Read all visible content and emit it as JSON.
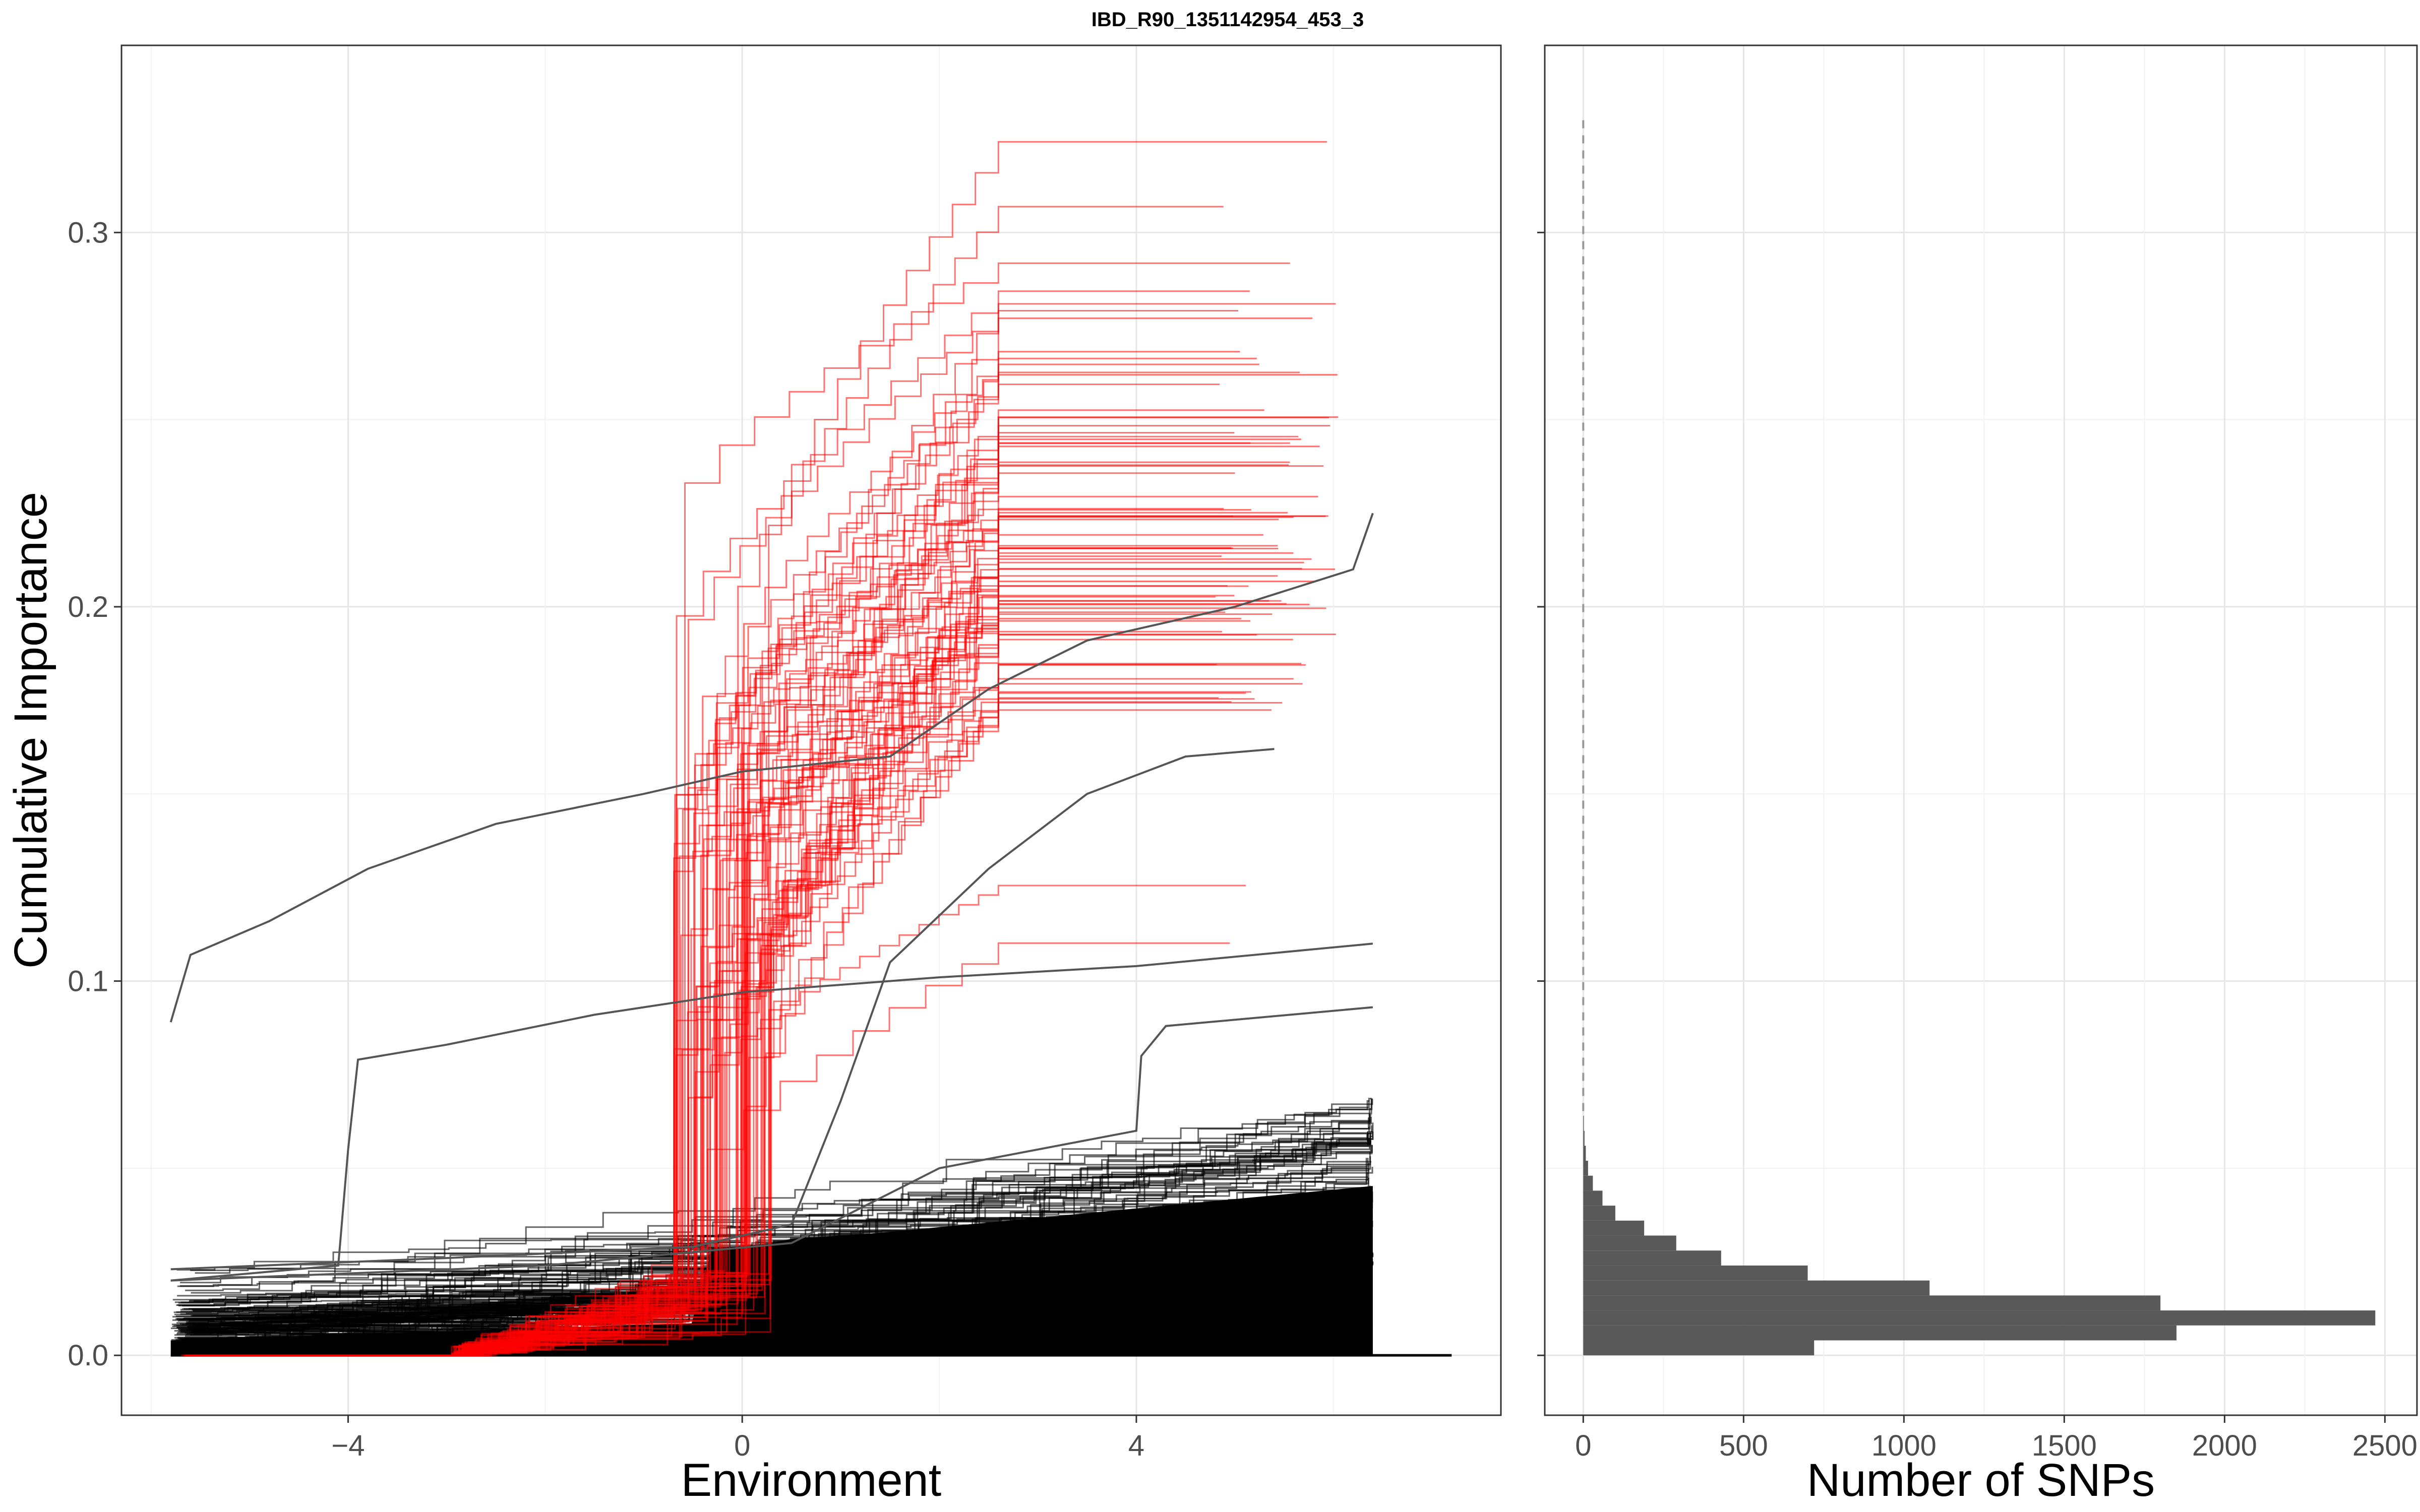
{
  "chart_data": {
    "type": "line",
    "title": "IBD_R90_1351142954_453_3",
    "colors": {
      "red_series": "#ff0000",
      "black_series": "#000000",
      "grey_series": "#555555",
      "hist_bar": "#595959"
    },
    "panels": [
      {
        "id": "cumulative",
        "type": "line",
        "xlabel": "Environment",
        "ylabel": "Cumulative Importance",
        "xlim": [
          -6.3,
          7.7
        ],
        "ylim": [
          -0.016,
          0.35
        ],
        "xticks": [
          -4,
          0,
          4
        ],
        "xtick_labels": [
          "−4",
          "0",
          "4"
        ],
        "yticks": [
          0.0,
          0.1,
          0.2,
          0.3
        ],
        "ytick_labels": [
          "0.0",
          "0.1",
          "0.2",
          "0.3"
        ],
        "grid": true,
        "series_groups": [
          {
            "color": "red",
            "count": 120,
            "x_range": [
              -5.8,
              6.0
            ],
            "final_values_range": [
              0.08,
              0.33
            ]
          },
          {
            "color": "black",
            "count": 450,
            "x_range": [
              -5.8,
              6.4
            ],
            "final_values_range": [
              0.0,
              0.07
            ]
          }
        ],
        "highlighted_curves": [
          {
            "points": [
              [
                -5.8,
                0.089
              ],
              [
                -5.6,
                0.107
              ],
              [
                -4.8,
                0.116
              ],
              [
                -3.8,
                0.13
              ],
              [
                -2.5,
                0.142
              ],
              [
                -1.0,
                0.15
              ],
              [
                0.0,
                0.156
              ],
              [
                1.5,
                0.16
              ],
              [
                2.5,
                0.178
              ],
              [
                3.5,
                0.191
              ],
              [
                5.0,
                0.2
              ],
              [
                6.2,
                0.21
              ],
              [
                6.4,
                0.225
              ]
            ]
          },
          {
            "points": [
              [
                -5.8,
                0.02
              ],
              [
                -4.1,
                0.024
              ],
              [
                -4.0,
                0.055
              ],
              [
                -3.9,
                0.079
              ],
              [
                -3.0,
                0.083
              ],
              [
                -1.5,
                0.091
              ],
              [
                0.0,
                0.097
              ],
              [
                2.0,
                0.101
              ],
              [
                4.0,
                0.104
              ],
              [
                6.4,
                0.11
              ]
            ]
          },
          {
            "points": [
              [
                -5.8,
                0.023
              ],
              [
                -3.0,
                0.026
              ],
              [
                -0.5,
                0.029
              ],
              [
                0.5,
                0.035
              ],
              [
                1.0,
                0.068
              ],
              [
                1.5,
                0.105
              ],
              [
                2.5,
                0.13
              ],
              [
                3.5,
                0.15
              ],
              [
                4.5,
                0.16
              ],
              [
                5.4,
                0.162
              ]
            ]
          },
          {
            "points": [
              [
                -5.8,
                0.02
              ],
              [
                -2.0,
                0.024
              ],
              [
                0.5,
                0.03
              ],
              [
                2.0,
                0.05
              ],
              [
                4.0,
                0.06
              ],
              [
                4.05,
                0.08
              ],
              [
                4.3,
                0.088
              ],
              [
                6.4,
                0.093
              ]
            ]
          }
        ]
      },
      {
        "id": "histogram",
        "type": "bar",
        "orientation": "horizontal",
        "xlabel": "Number of SNPs",
        "xlim": [
          -120,
          2600
        ],
        "ylim": [
          -0.016,
          0.35
        ],
        "xticks": [
          0,
          500,
          1000,
          1500,
          2000,
          2500
        ],
        "xtick_labels": [
          "0",
          "500",
          "1000",
          "1500",
          "2000",
          "2500"
        ],
        "grid": true,
        "bin_width": 0.004,
        "bins": [
          {
            "y_start": 0.0,
            "count": 720
          },
          {
            "y_start": 0.004,
            "count": 1850
          },
          {
            "y_start": 0.008,
            "count": 2470
          },
          {
            "y_start": 0.012,
            "count": 1800
          },
          {
            "y_start": 0.016,
            "count": 1080
          },
          {
            "y_start": 0.02,
            "count": 700
          },
          {
            "y_start": 0.024,
            "count": 430
          },
          {
            "y_start": 0.028,
            "count": 290
          },
          {
            "y_start": 0.032,
            "count": 190
          },
          {
            "y_start": 0.036,
            "count": 100
          },
          {
            "y_start": 0.04,
            "count": 60
          },
          {
            "y_start": 0.044,
            "count": 30
          },
          {
            "y_start": 0.048,
            "count": 15
          },
          {
            "y_start": 0.052,
            "count": 8
          },
          {
            "y_start": 0.056,
            "count": 4
          },
          {
            "y_start": 0.06,
            "count": 2
          }
        ]
      }
    ]
  }
}
